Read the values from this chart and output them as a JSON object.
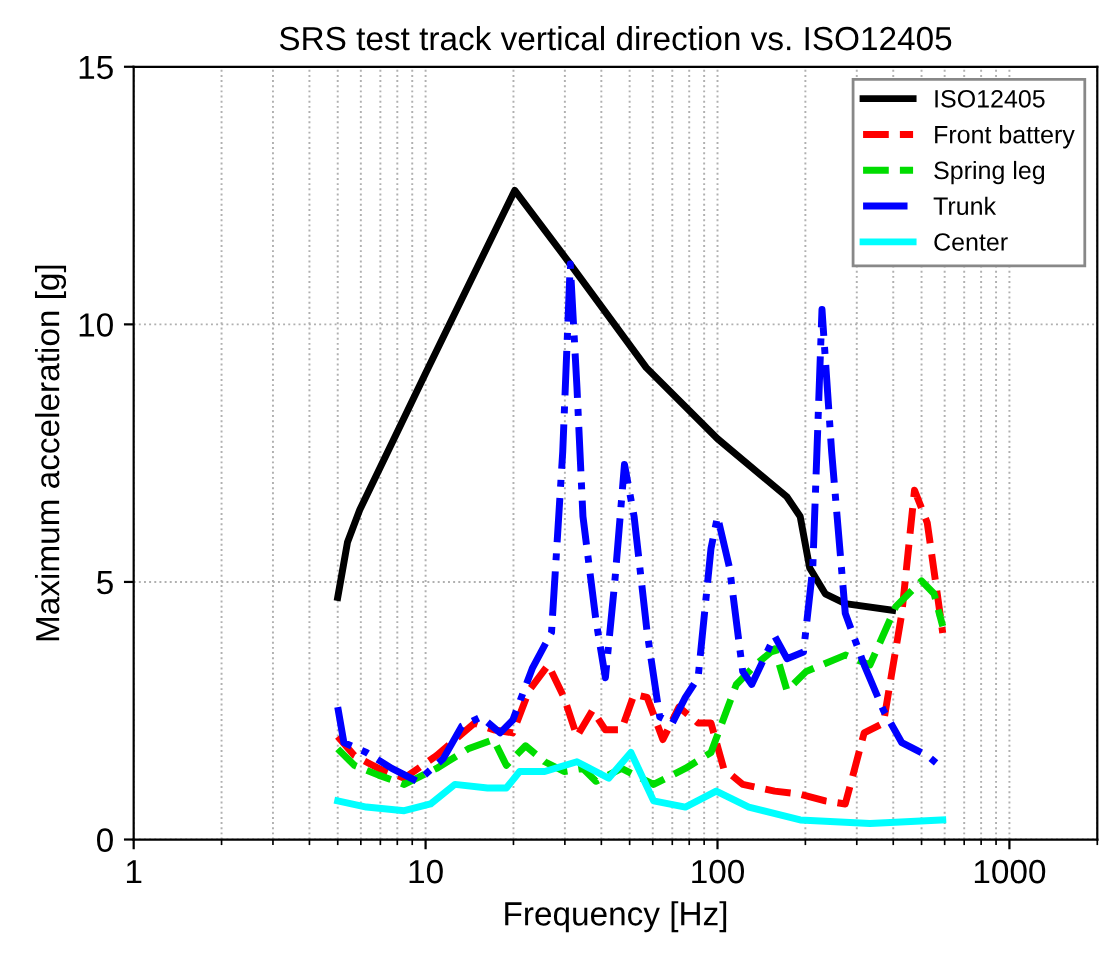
{
  "chart_data": {
    "type": "line",
    "title": "SRS test track vertical direction vs. ISO12405",
    "xlabel": "Frequency [Hz]",
    "ylabel": "Maximum acceleration [g]",
    "log": "x",
    "xlim": [
      1,
      2000
    ],
    "xticks": [
      1,
      10,
      100,
      1000
    ],
    "ylim": [
      0,
      15
    ],
    "yticks": [
      0,
      5,
      10,
      15
    ],
    "grid": true,
    "legend": "top right",
    "series": [
      {
        "name": "ISO12405",
        "color": "#000000",
        "line_style": "solid",
        "x": [
          5,
          5.4,
          5.95,
          10,
          20.2,
          31.3,
          57,
          100,
          173,
          192,
          207,
          234,
          274,
          398
        ],
        "values": [
          4.7,
          5.77,
          6.4,
          9.05,
          12.6,
          11.17,
          9.16,
          7.78,
          6.65,
          6.27,
          5.27,
          4.77,
          4.58,
          4.45
        ]
      },
      {
        "name": "Front battery",
        "color": "#ff0000",
        "line_style": "dashed",
        "x": [
          5,
          5.7,
          6.9,
          8.45,
          10.9,
          14.7,
          17.1,
          19.9,
          22.6,
          26.3,
          29.8,
          33,
          37.3,
          41.3,
          46.9,
          51.8,
          57.4,
          65,
          73.8,
          85.8,
          95,
          105,
          122,
          157,
          192,
          234,
          274,
          318,
          370,
          428,
          473,
          523,
          591
        ],
        "values": [
          2.0,
          1.63,
          1.38,
          1.19,
          1.63,
          2.26,
          2.13,
          2.07,
          2.89,
          3.39,
          2.76,
          2.0,
          2.51,
          2.13,
          2.13,
          2.82,
          2.76,
          1.94,
          2.57,
          2.26,
          2.26,
          1.38,
          1.07,
          0.94,
          0.88,
          0.75,
          0.69,
          2.07,
          2.26,
          4.39,
          6.78,
          6.15,
          4.01
        ]
      },
      {
        "name": "Spring leg",
        "color": "#00dd00",
        "line_style": "dashed",
        "x": [
          5,
          5.7,
          6.9,
          8.45,
          10.9,
          14.0,
          17.1,
          18.9,
          22.0,
          25.6,
          29.8,
          34.6,
          38.3,
          46.9,
          60.4,
          77.6,
          95,
          116,
          135,
          157,
          173,
          201,
          274,
          333,
          408,
          500,
          552,
          591
        ],
        "values": [
          1.76,
          1.44,
          1.25,
          1.07,
          1.38,
          1.76,
          1.94,
          1.44,
          1.82,
          1.51,
          1.32,
          1.38,
          1.13,
          1.38,
          1.07,
          1.38,
          1.69,
          3.01,
          3.39,
          3.7,
          2.89,
          3.26,
          3.58,
          3.39,
          4.52,
          5.02,
          4.77,
          4.14
        ]
      },
      {
        "name": "Trunk",
        "color": "#0000ff",
        "line_style": "dashdot",
        "x": [
          5,
          5.25,
          6.27,
          7.66,
          9.37,
          11.5,
          13.3,
          15.5,
          18,
          19.9,
          23.2,
          27,
          29.5,
          31.3,
          33,
          34.6,
          38.3,
          41.3,
          44.5,
          48,
          51.8,
          57.4,
          63.4,
          70,
          77.6,
          85.8,
          95,
          100,
          110,
          122,
          131,
          157,
          173,
          197,
          212,
          228,
          246,
          274,
          318,
          370,
          428,
          523,
          591
        ],
        "values": [
          2.57,
          1.88,
          1.69,
          1.38,
          1.13,
          1.57,
          2.2,
          2.38,
          2.07,
          2.32,
          3.32,
          4.02,
          7.53,
          11.17,
          8.78,
          6.27,
          4.27,
          3.14,
          5.02,
          7.28,
          6.27,
          4.02,
          2.38,
          2.26,
          2.76,
          3.14,
          5.65,
          6.27,
          5.27,
          3.26,
          3.01,
          3.95,
          3.51,
          3.64,
          5.27,
          10.29,
          7.53,
          4.39,
          3.39,
          2.51,
          1.88,
          1.63,
          1.38
        ]
      },
      {
        "name": "Center",
        "color": "#00ffff",
        "line_style": "solid",
        "x": [
          5,
          6.27,
          8.45,
          10.4,
          12.6,
          16.3,
          18.9,
          21,
          25.6,
          33,
          42.4,
          50.5,
          60.4,
          77.6,
          99,
          128,
          192,
          333,
          591
        ],
        "values": [
          0.75,
          0.63,
          0.56,
          0.69,
          1.07,
          1.0,
          1.0,
          1.32,
          1.32,
          1.51,
          1.19,
          1.69,
          0.75,
          0.63,
          0.94,
          0.63,
          0.38,
          0.31,
          0.38
        ]
      }
    ]
  }
}
